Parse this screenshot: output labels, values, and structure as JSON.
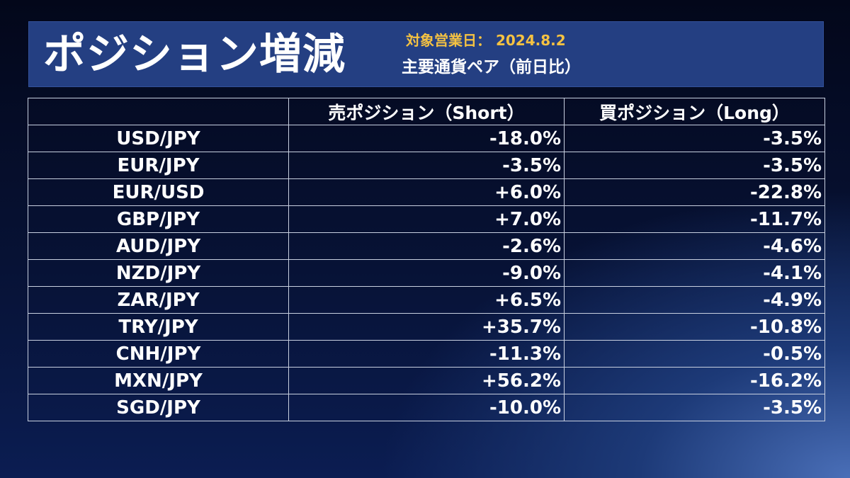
{
  "header": {
    "title": "ポジション増減",
    "date_line": "対象営業日： 2024.8.2",
    "subtitle": "主要通貨ペア（前日比）"
  },
  "chart_data": {
    "type": "table",
    "columns": [
      "",
      "売ポジション（Short）",
      "買ポジション（Long）"
    ],
    "rows": [
      [
        "USD/JPY",
        "-18.0%",
        "-3.5%"
      ],
      [
        "EUR/JPY",
        "-3.5%",
        "-3.5%"
      ],
      [
        "EUR/USD",
        "+6.0%",
        "-22.8%"
      ],
      [
        "GBP/JPY",
        "+7.0%",
        "-11.7%"
      ],
      [
        "AUD/JPY",
        "-2.6%",
        "-4.6%"
      ],
      [
        "NZD/JPY",
        "-9.0%",
        "-4.1%"
      ],
      [
        "ZAR/JPY",
        "+6.5%",
        "-4.9%"
      ],
      [
        "TRY/JPY",
        "+35.7%",
        "-10.8%"
      ],
      [
        "CNH/JPY",
        "-11.3%",
        "-0.5%"
      ],
      [
        "MXN/JPY",
        "+56.2%",
        "-16.2%"
      ],
      [
        "SGD/JPY",
        "-10.0%",
        "-3.5%"
      ]
    ]
  }
}
